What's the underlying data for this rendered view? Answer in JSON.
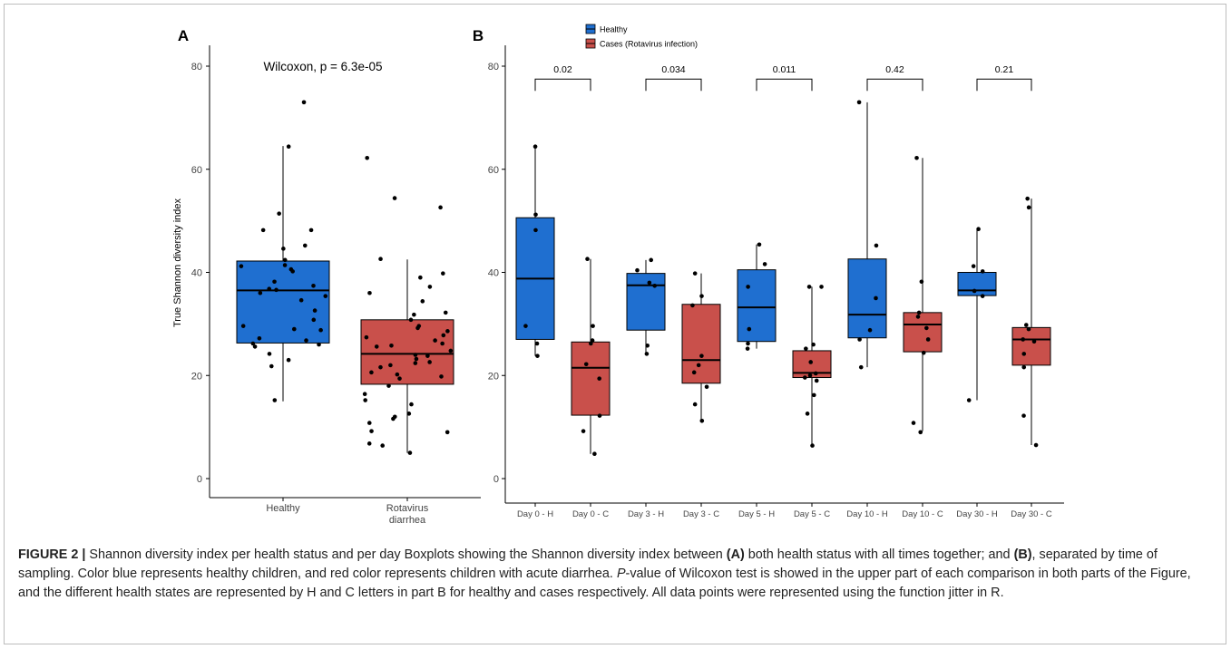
{
  "chart_data": [
    {
      "panel": "A",
      "type": "boxplot",
      "annotation": "Wilcoxon, p = 6.3e-05",
      "ylabel": "True Shannon diversity index",
      "ylim": [
        -3,
        85
      ],
      "yticks": [
        0,
        20,
        40,
        60,
        80
      ],
      "categories": [
        "Healthy",
        "Rotavirus diarrhea"
      ],
      "colors": [
        "#1f6fd0",
        "#c9504b"
      ],
      "boxes": [
        {
          "q1": 26.3,
          "median": 36.5,
          "q3": 42.2,
          "whisker_low": 15.0,
          "whisker_high": 64.5
        },
        {
          "q1": 18.3,
          "median": 24.2,
          "q3": 30.8,
          "whisker_low": 5.0,
          "whisker_high": 42.5
        }
      ],
      "points": [
        [
          73,
          64.4,
          51.4,
          48.2,
          48.2,
          45.2,
          44.6,
          42.4,
          41.4,
          41.2,
          40.6,
          40.2,
          38.2,
          37.4,
          36.8,
          36.6,
          36,
          35.4,
          34.6,
          32.6,
          30.8,
          29.6,
          29,
          28.8,
          27.2,
          26.8,
          26.2,
          26,
          25.6,
          24.2,
          23,
          21.8,
          15.2
        ],
        [
          62.2,
          54.4,
          52.6,
          42.6,
          39.8,
          39,
          37.2,
          36,
          34.4,
          32.2,
          31.8,
          30.8,
          29.6,
          29.2,
          28.6,
          27.8,
          27.4,
          26.8,
          26.2,
          25.8,
          25.6,
          24.8,
          24,
          23.8,
          23.2,
          22.6,
          22.4,
          22,
          21.6,
          20.6,
          20.2,
          19.8,
          19.4,
          18,
          16.4,
          15.2,
          14.4,
          12.6,
          12,
          11.6,
          10.8,
          9.2,
          9,
          6.8,
          6.4,
          5
        ]
      ]
    },
    {
      "panel": "B",
      "type": "boxplot",
      "legend": [
        "Healthy",
        "Cases (Rotavirus infection)"
      ],
      "colors": [
        "#1f6fd0",
        "#c9504b"
      ],
      "ylim": [
        -3,
        85
      ],
      "yticks": [
        0,
        20,
        40,
        60,
        80
      ],
      "categories": [
        "Day 0 - H",
        "Day 0 - C",
        "Day 3 - H",
        "Day 3 - C",
        "Day 5 - H",
        "Day 5 - C",
        "Day 10 - H",
        "Day 10 - C",
        "Day 30 - H",
        "Day 30 - C"
      ],
      "pvalues": [
        "0.02",
        "0.034",
        "0.011",
        "0.42",
        "0.21"
      ],
      "bracket_y": 77.5,
      "boxes": [
        {
          "q1": 27,
          "median": 38.8,
          "q3": 50.6,
          "whisker_low": 23.8,
          "whisker_high": 64.4
        },
        {
          "q1": 12.3,
          "median": 21.5,
          "q3": 26.5,
          "whisker_low": 4.8,
          "whisker_high": 42.6
        },
        {
          "q1": 28.8,
          "median": 37.5,
          "q3": 39.8,
          "whisker_low": 24.2,
          "whisker_high": 42.4
        },
        {
          "q1": 18.5,
          "median": 23,
          "q3": 33.8,
          "whisker_low": 11.3,
          "whisker_high": 39.8
        },
        {
          "q1": 26.6,
          "median": 33.2,
          "q3": 40.5,
          "whisker_low": 25.2,
          "whisker_high": 45.4
        },
        {
          "q1": 19.6,
          "median": 20.5,
          "q3": 24.8,
          "whisker_low": 6.4,
          "whisker_high": 37.2
        },
        {
          "q1": 27.3,
          "median": 31.8,
          "q3": 42.6,
          "whisker_low": 21.6,
          "whisker_high": 73
        },
        {
          "q1": 24.6,
          "median": 29.9,
          "q3": 32.2,
          "whisker_low": 9.2,
          "whisker_high": 62.2
        },
        {
          "q1": 35.5,
          "median": 36.5,
          "q3": 40,
          "whisker_low": 15.2,
          "whisker_high": 48.4
        },
        {
          "q1": 22,
          "median": 27,
          "q3": 29.3,
          "whisker_low": 6.5,
          "whisker_high": 54.3
        }
      ],
      "points": [
        [
          64.4,
          51.2,
          48.2,
          29.6,
          26.2,
          23.8
        ],
        [
          42.6,
          29.6,
          26.8,
          26.2,
          22.2,
          19.4,
          12.2,
          9.2,
          4.8
        ],
        [
          42.4,
          40.4,
          38,
          37.4,
          25.8,
          24.2
        ],
        [
          39.8,
          35.4,
          33.6,
          23.8,
          22,
          20.6,
          17.8,
          14.4,
          11.2
        ],
        [
          45.4,
          41.6,
          37.2,
          29,
          26.2,
          25.2
        ],
        [
          37.2,
          37.2,
          26,
          25.2,
          22.6,
          20.4,
          20,
          19.6,
          19,
          16.2,
          12.6,
          6.4
        ],
        [
          73,
          45.2,
          35,
          28.8,
          27,
          21.6
        ],
        [
          62.2,
          38.2,
          32.2,
          31.4,
          29.2,
          27,
          24.4,
          10.8,
          9
        ],
        [
          48.4,
          41.2,
          40.2,
          36.4,
          35.4,
          15.2
        ],
        [
          54.3,
          52.6,
          29.8,
          29,
          27,
          26.6,
          24.2,
          21.6,
          12.2,
          6.5
        ]
      ]
    }
  ],
  "panel_labels": {
    "a": "A",
    "b": "B"
  },
  "caption": {
    "figure_label": "FIGURE 2 |",
    "text_1": " Shannon diversity index per health status and per day Boxplots showing the Shannon diversity index between ",
    "bold_a": "(A)",
    "text_2": " both health status with all times together; and ",
    "bold_b": "(B)",
    "text_3": ", separated by time of sampling. Color blue represents healthy children, and red color represents children with acute diarrhea. ",
    "italic_p": "P",
    "text_4": "-value of Wilcoxon test is showed in the upper part of each comparison in both parts of the Figure, and the different health states are represented by H and C letters in part B for healthy and cases respectively. All data points were represented using the function jitter in R."
  }
}
